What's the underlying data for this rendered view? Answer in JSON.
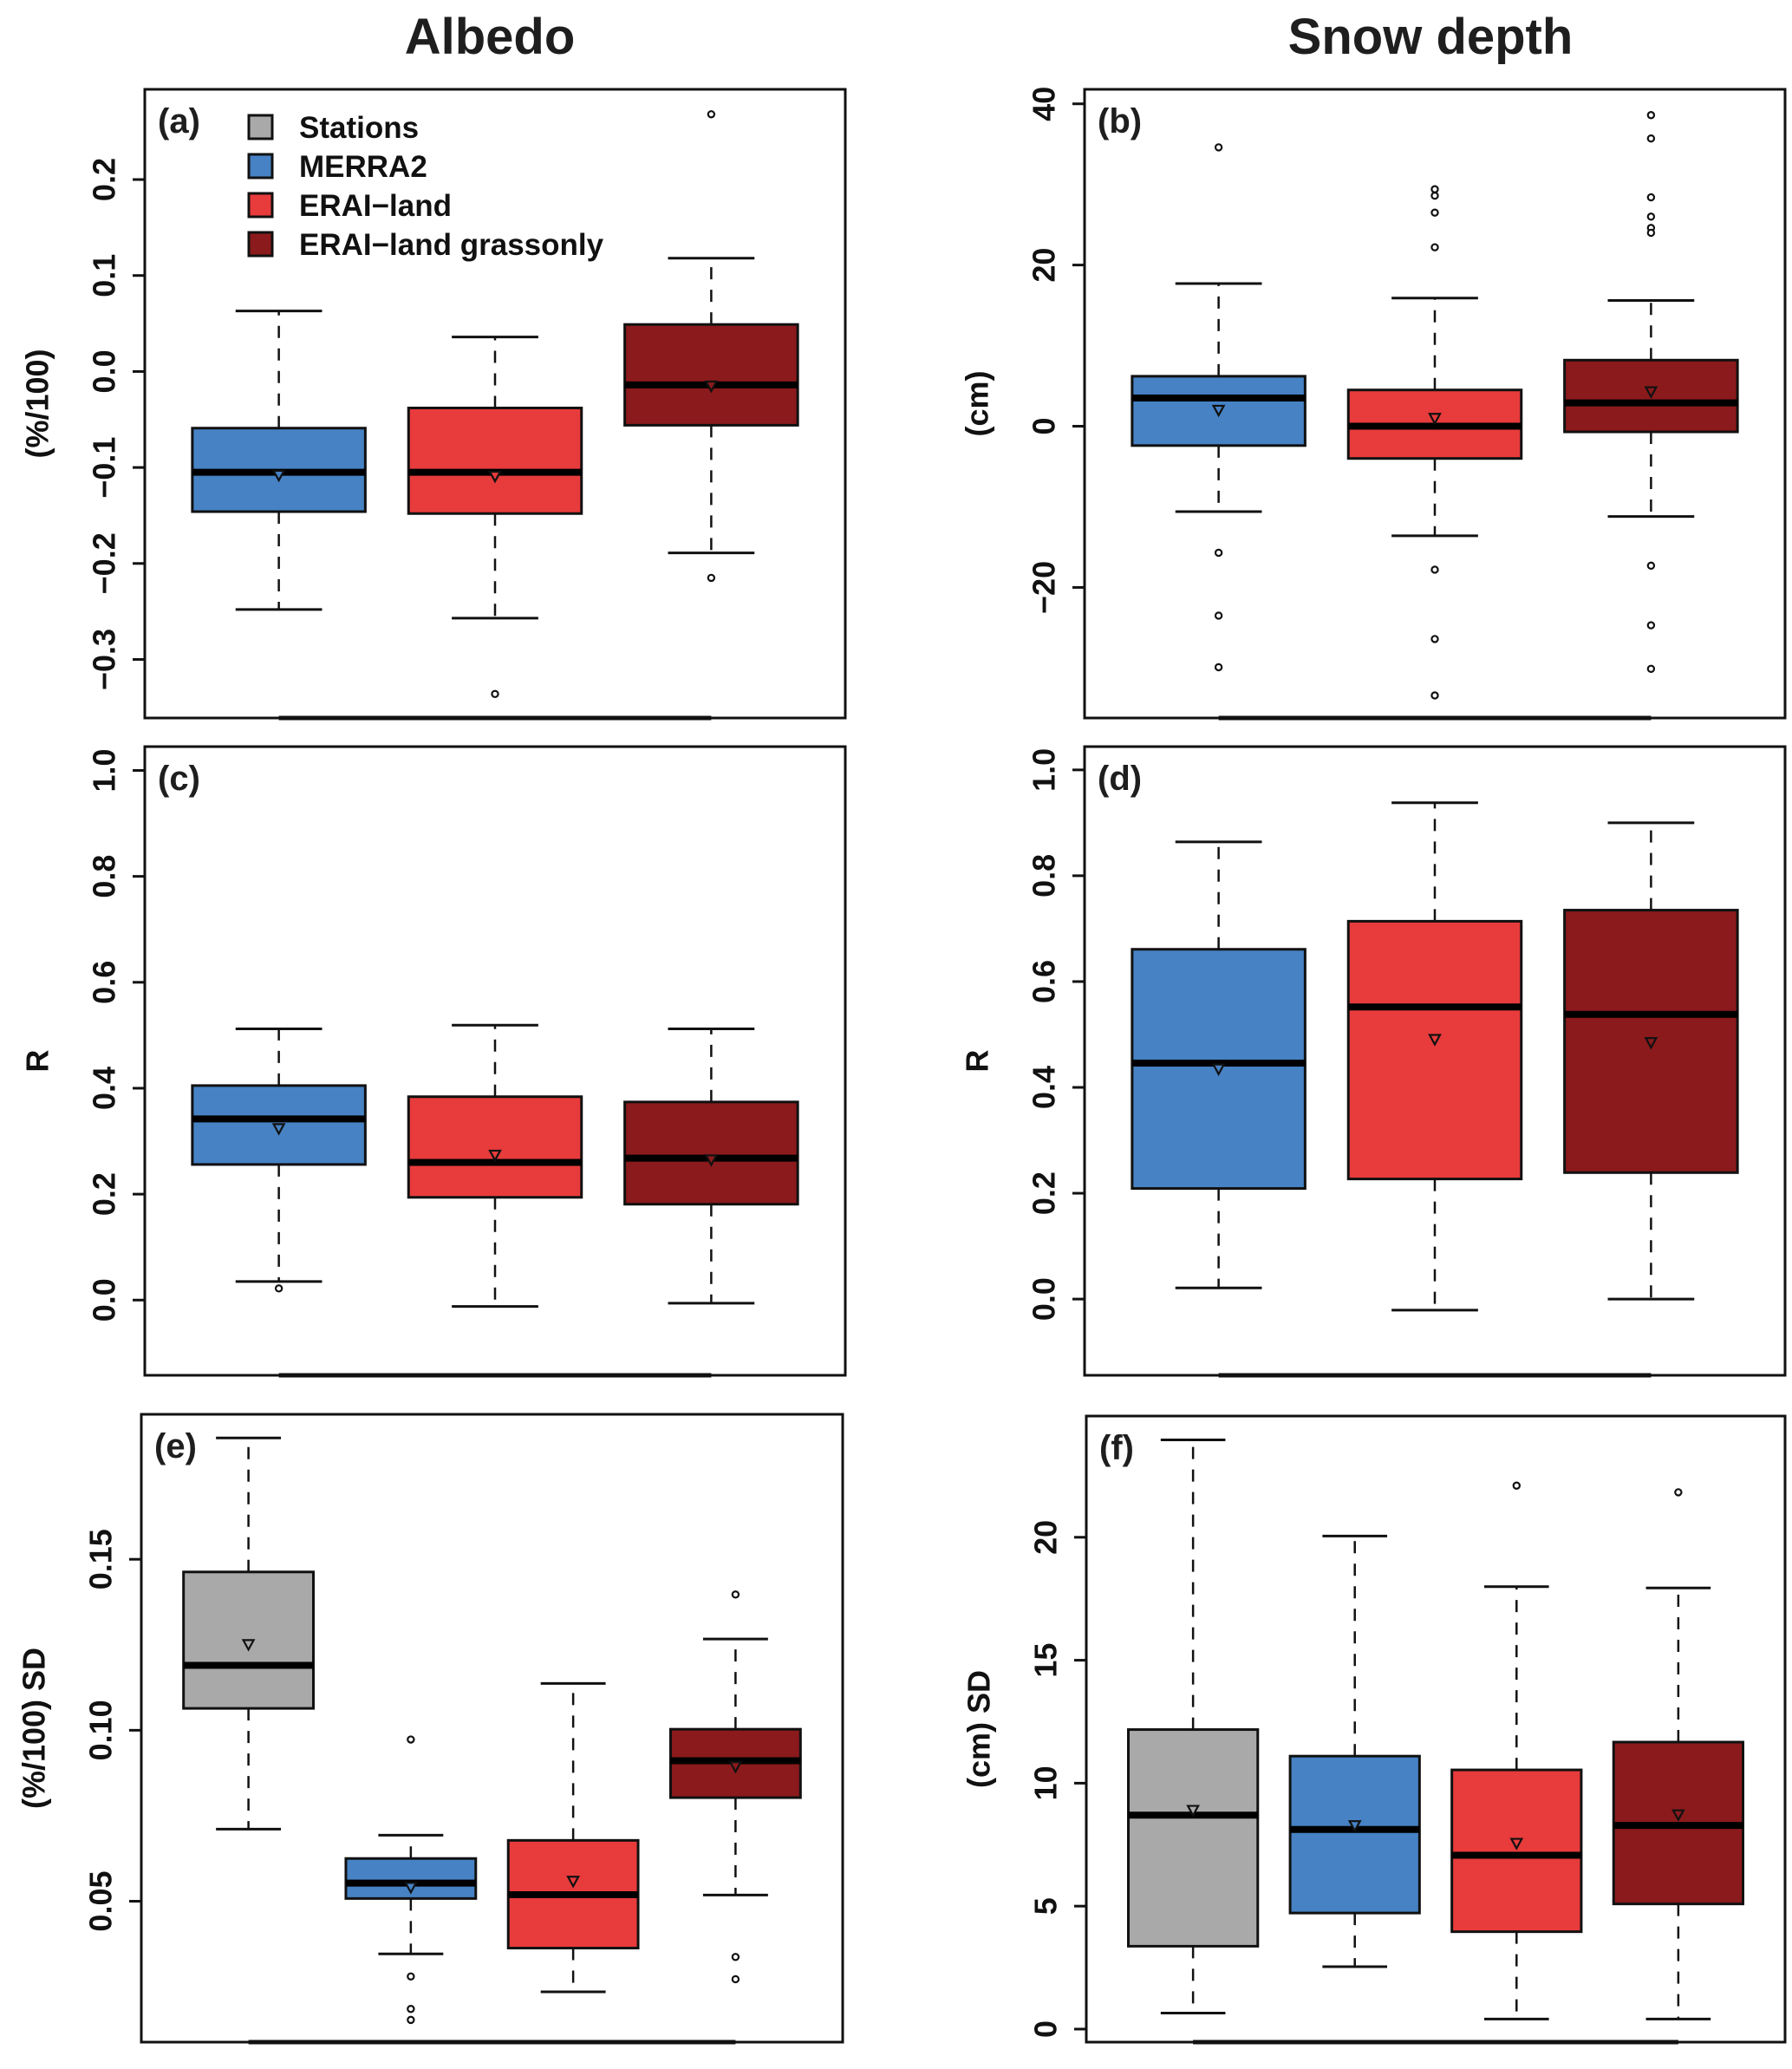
{
  "column_titles": [
    "Albedo",
    "Snow depth"
  ],
  "legend": {
    "position": "top-left of panel (a)",
    "entries": [
      {
        "label": "Stations",
        "color": "#A8A9A8"
      },
      {
        "label": "MERRA2",
        "color": "#4682C4"
      },
      {
        "label": "ERAI−land",
        "color": "#E83B3C"
      },
      {
        "label": "ERAI−land grassonly",
        "color": "#8B1A1C"
      }
    ]
  },
  "chart_data": [
    {
      "type": "boxplot",
      "panel": "(a)",
      "column": "Albedo",
      "ylabel": "(%/100)",
      "ylim": [
        -0.361,
        0.294
      ],
      "yticks": [
        -0.3,
        -0.2,
        -0.1,
        0.0,
        0.1,
        0.2
      ],
      "ytick_labels": [
        "−0.3",
        "−0.2",
        "−0.1",
        "0.0",
        "0.1",
        "0.2"
      ],
      "series": [
        {
          "name": "MERRA2",
          "color": "#4682C4",
          "whisker_low": -0.248,
          "q1": -0.146,
          "median": -0.105,
          "q3": -0.059,
          "whisker_high": 0.063,
          "mean": -0.108,
          "outliers": []
        },
        {
          "name": "ERAI−land",
          "color": "#E83B3C",
          "whisker_low": -0.257,
          "q1": -0.148,
          "median": -0.105,
          "q3": -0.038,
          "whisker_high": 0.036,
          "mean": -0.109,
          "outliers": [
            -0.336
          ]
        },
        {
          "name": "ERAI−land grassonly",
          "color": "#8B1A1C",
          "whisker_low": -0.189,
          "q1": -0.056,
          "median": -0.014,
          "q3": 0.049,
          "whisker_high": 0.118,
          "mean": -0.015,
          "outliers": [
            0.268,
            -0.215
          ]
        }
      ]
    },
    {
      "type": "boxplot",
      "panel": "(b)",
      "column": "Snow depth",
      "ylabel": "(cm)",
      "ylim": [
        -36.2,
        41.8
      ],
      "yticks": [
        -20,
        0,
        20,
        40
      ],
      "ytick_labels": [
        "−20",
        "0",
        "20",
        "40"
      ],
      "series": [
        {
          "name": "MERRA2",
          "color": "#4682C4",
          "whisker_low": -10.6,
          "q1": -2.4,
          "median": 3.5,
          "q3": 6.2,
          "whisker_high": 17.7,
          "mean": 2.0,
          "outliers": [
            34.6,
            -15.7,
            -23.5,
            -29.9
          ]
        },
        {
          "name": "ERAI−land",
          "color": "#E83B3C",
          "whisker_low": -13.6,
          "q1": -4.0,
          "median": 0.0,
          "q3": 4.5,
          "whisker_high": 15.9,
          "mean": 1.0,
          "outliers": [
            29.4,
            28.6,
            26.5,
            22.2,
            -17.8,
            -26.4,
            -33.4
          ]
        },
        {
          "name": "ERAI−land grassonly",
          "color": "#8B1A1C",
          "whisker_low": -11.2,
          "q1": -0.7,
          "median": 2.9,
          "q3": 8.2,
          "whisker_high": 15.6,
          "mean": 4.3,
          "outliers": [
            38.6,
            35.7,
            28.4,
            26.0,
            24.6,
            24.0,
            -17.3,
            -24.7,
            -30.1
          ]
        }
      ]
    },
    {
      "type": "boxplot",
      "panel": "(c)",
      "column": "Albedo",
      "ylabel": "R",
      "ylim": [
        -0.142,
        1.045
      ],
      "yticks": [
        0.0,
        0.2,
        0.4,
        0.6,
        0.8,
        1.0
      ],
      "ytick_labels": [
        "0.0",
        "0.2",
        "0.4",
        "0.6",
        "0.8",
        "1.0"
      ],
      "series": [
        {
          "name": "MERRA2",
          "color": "#4682C4",
          "whisker_low": 0.035,
          "q1": 0.256,
          "median": 0.342,
          "q3": 0.405,
          "whisker_high": 0.512,
          "mean": 0.324,
          "outliers": [
            0.022
          ]
        },
        {
          "name": "ERAI−land",
          "color": "#E83B3C",
          "whisker_low": -0.012,
          "q1": 0.194,
          "median": 0.26,
          "q3": 0.384,
          "whisker_high": 0.519,
          "mean": 0.274,
          "outliers": []
        },
        {
          "name": "ERAI−land grassonly",
          "color": "#8B1A1C",
          "whisker_low": -0.006,
          "q1": 0.181,
          "median": 0.268,
          "q3": 0.374,
          "whisker_high": 0.512,
          "mean": 0.265,
          "outliers": []
        }
      ]
    },
    {
      "type": "boxplot",
      "panel": "(d)",
      "column": "Snow depth",
      "ylabel": "R",
      "ylim": [
        -0.144,
        1.044
      ],
      "yticks": [
        0.0,
        0.2,
        0.4,
        0.6,
        0.8,
        1.0
      ],
      "ytick_labels": [
        "0.0",
        "0.2",
        "0.4",
        "0.6",
        "0.8",
        "1.0"
      ],
      "series": [
        {
          "name": "MERRA2",
          "color": "#4682C4",
          "whisker_low": 0.021,
          "q1": 0.209,
          "median": 0.446,
          "q3": 0.661,
          "whisker_high": 0.864,
          "mean": 0.435,
          "outliers": []
        },
        {
          "name": "ERAI−land",
          "color": "#E83B3C",
          "whisker_low": -0.021,
          "q1": 0.227,
          "median": 0.552,
          "q3": 0.714,
          "whisker_high": 0.938,
          "mean": 0.491,
          "outliers": []
        },
        {
          "name": "ERAI−land grassonly",
          "color": "#8B1A1C",
          "whisker_low": 0.0,
          "q1": 0.239,
          "median": 0.538,
          "q3": 0.735,
          "whisker_high": 0.9,
          "mean": 0.485,
          "outliers": []
        }
      ]
    },
    {
      "type": "boxplot",
      "panel": "(e)",
      "column": "Albedo",
      "ylabel": "(%/100) SD",
      "ylim": [
        0.0088,
        0.1924
      ],
      "yticks": [
        0.05,
        0.1,
        0.15
      ],
      "ytick_labels": [
        "0.05",
        "0.10",
        "0.15"
      ],
      "series": [
        {
          "name": "Stations",
          "color": "#A8A9A8",
          "whisker_low": 0.0711,
          "q1": 0.1064,
          "median": 0.119,
          "q3": 0.1463,
          "whisker_high": 0.1855,
          "mean": 0.1251,
          "outliers": []
        },
        {
          "name": "MERRA2",
          "color": "#4682C4",
          "whisker_low": 0.0346,
          "q1": 0.0508,
          "median": 0.0553,
          "q3": 0.0625,
          "whisker_high": 0.0693,
          "mean": 0.0541,
          "outliers": [
            0.0973,
            0.028,
            0.0185,
            0.0153
          ]
        },
        {
          "name": "ERAI−land",
          "color": "#E83B3C",
          "whisker_low": 0.0235,
          "q1": 0.0363,
          "median": 0.0519,
          "q3": 0.0678,
          "whisker_high": 0.1137,
          "mean": 0.0559,
          "outliers": []
        },
        {
          "name": "ERAI−land grassonly",
          "color": "#8B1A1C",
          "whisker_low": 0.0518,
          "q1": 0.0803,
          "median": 0.0911,
          "q3": 0.1003,
          "whisker_high": 0.1267,
          "mean": 0.0894,
          "outliers": [
            0.1397,
            0.0337,
            0.0272
          ]
        }
      ]
    },
    {
      "type": "boxplot",
      "panel": "(f)",
      "column": "Snow depth",
      "ylabel": "(cm) SD",
      "ylim": [
        -0.53,
        24.93
      ],
      "yticks": [
        0,
        5,
        10,
        15,
        20
      ],
      "ytick_labels": [
        "0",
        "5",
        "10",
        "15",
        "20"
      ],
      "series": [
        {
          "name": "Stations",
          "color": "#A8A9A8",
          "whisker_low": 0.65,
          "q1": 3.37,
          "median": 8.7,
          "q3": 12.18,
          "whisker_high": 23.96,
          "mean": 8.9,
          "outliers": []
        },
        {
          "name": "MERRA2",
          "color": "#4682C4",
          "whisker_low": 2.54,
          "q1": 4.72,
          "median": 8.12,
          "q3": 11.1,
          "whisker_high": 20.05,
          "mean": 8.28,
          "outliers": []
        },
        {
          "name": "ERAI−land",
          "color": "#E83B3C",
          "whisker_low": 0.41,
          "q1": 3.96,
          "median": 7.07,
          "q3": 10.54,
          "whisker_high": 17.99,
          "mean": 7.56,
          "outliers": [
            22.1
          ]
        },
        {
          "name": "ERAI−land grassonly",
          "color": "#8B1A1C",
          "whisker_low": 0.41,
          "q1": 5.09,
          "median": 8.28,
          "q3": 11.67,
          "whisker_high": 17.94,
          "mean": 8.72,
          "outliers": [
            21.83
          ]
        }
      ]
    }
  ]
}
